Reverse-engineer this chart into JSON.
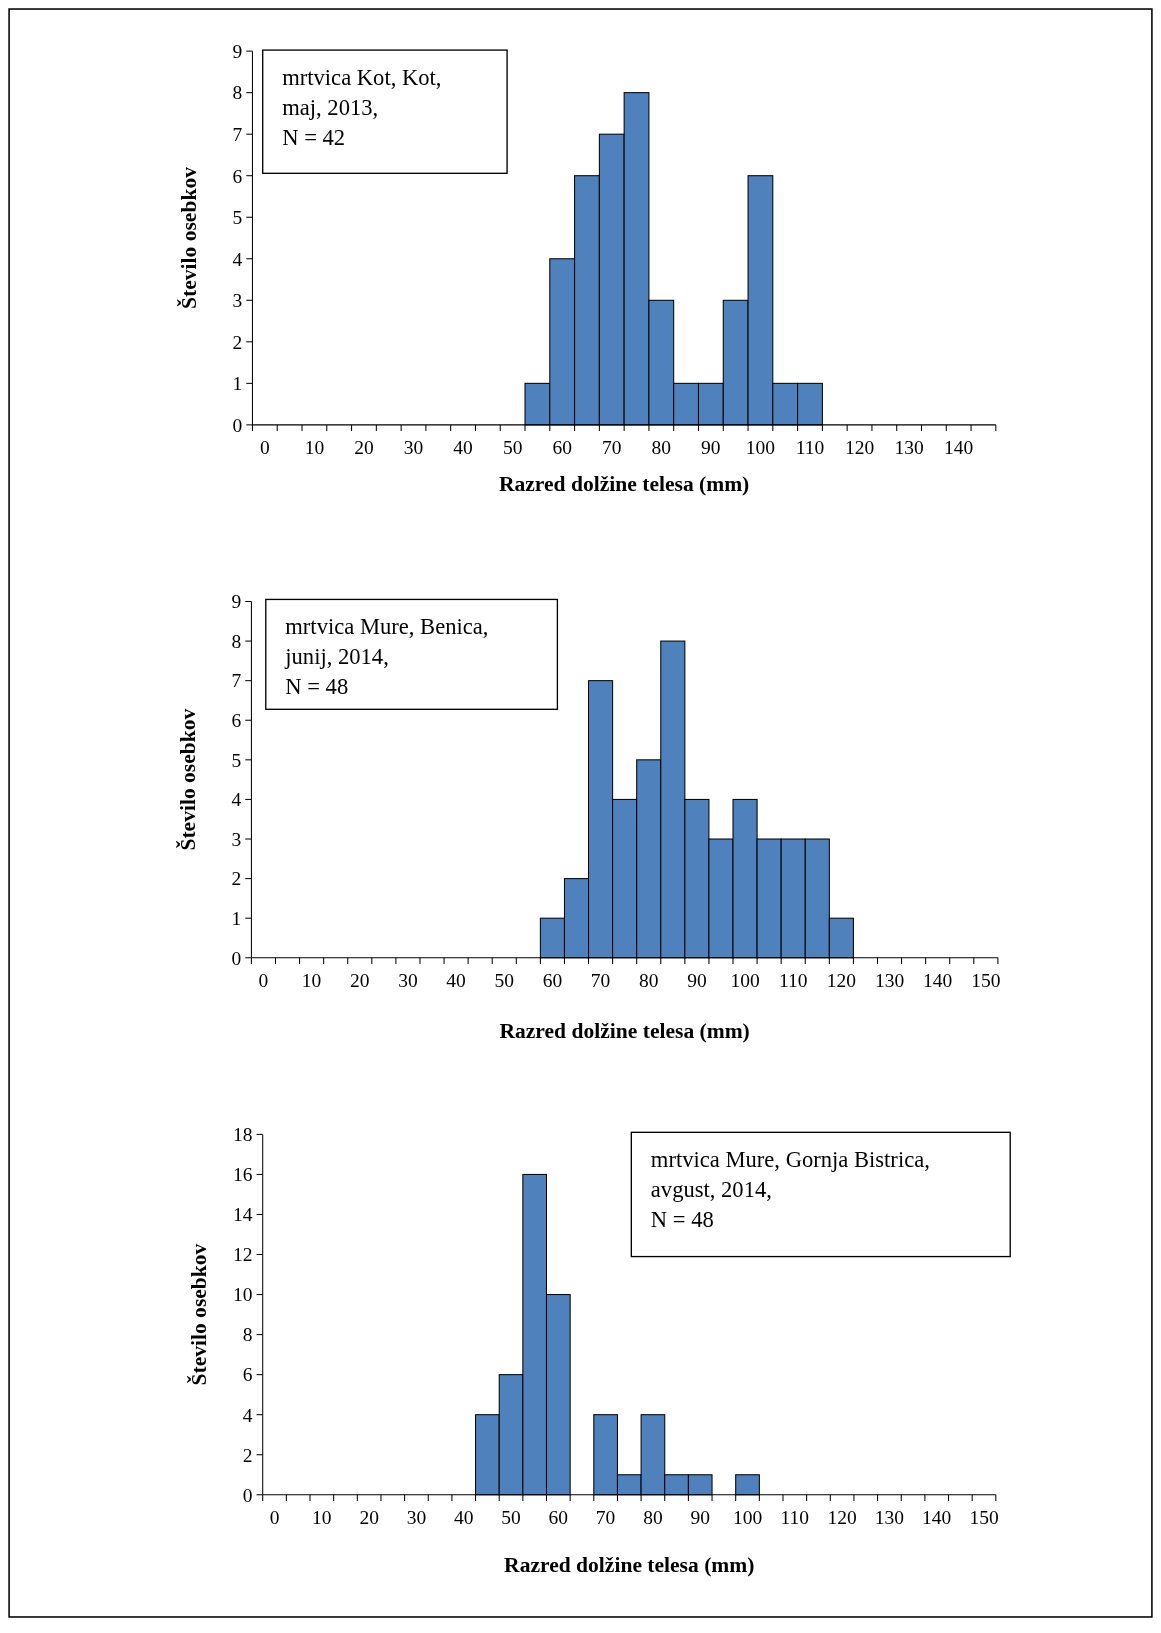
{
  "chart_data": [
    {
      "type": "bar",
      "xlabel": "Razred dolžine telesa (mm)",
      "ylabel": "Število osebkov",
      "color": "#4f81bd",
      "ylim": [
        0,
        9
      ],
      "yticks": [
        0,
        1,
        2,
        3,
        4,
        5,
        6,
        7,
        8,
        9
      ],
      "annotations": [
        "mrtvica Kot, Kot,\nmaj, 2013,\nN = 42"
      ],
      "categories": [
        "0",
        null,
        "10",
        null,
        "20",
        null,
        "30",
        null,
        "40",
        null,
        "50",
        null,
        "60",
        null,
        "70",
        null,
        "80",
        null,
        "90",
        null,
        "100",
        null,
        "110",
        null,
        "120",
        null,
        "130",
        null,
        "140",
        null
      ],
      "values": [
        0,
        0,
        0,
        0,
        0,
        0,
        0,
        0,
        0,
        0,
        0,
        1,
        4,
        6,
        7,
        8,
        3,
        1,
        1,
        3,
        6,
        1,
        1,
        0,
        0,
        0,
        0,
        0,
        0,
        0
      ]
    },
    {
      "type": "bar",
      "xlabel": "Razred dolžine telesa (mm)",
      "ylabel": "Število osebkov",
      "color": "#4f81bd",
      "ylim": [
        0,
        9
      ],
      "yticks": [
        0,
        1,
        2,
        3,
        4,
        5,
        6,
        7,
        8,
        9
      ],
      "annotations": [
        "mrtvica Mure, Benica,\njunij, 2014,\nN = 48"
      ],
      "categories": [
        "0",
        null,
        "10",
        null,
        "20",
        null,
        "30",
        null,
        "40",
        null,
        "50",
        null,
        "60",
        null,
        "70",
        null,
        "80",
        null,
        "90",
        null,
        "100",
        null,
        "110",
        null,
        "120",
        null,
        "130",
        null,
        "140",
        null,
        "150"
      ],
      "values": [
        0,
        0,
        0,
        0,
        0,
        0,
        0,
        0,
        0,
        0,
        0,
        0,
        1,
        2,
        7,
        4,
        5,
        8,
        4,
        3,
        4,
        3,
        3,
        3,
        1,
        0,
        0,
        0,
        0,
        0,
        0
      ]
    },
    {
      "type": "bar",
      "xlabel": "Razred dolžine telesa (mm)",
      "ylabel": "Število osebkov",
      "color": "#4f81bd",
      "ylim": [
        0,
        18
      ],
      "yticks": [
        0,
        2,
        4,
        6,
        8,
        10,
        12,
        14,
        16,
        18
      ],
      "annotations": [
        "mrtvica Mure, Gornja Bistrica,\navgust, 2014,\nN = 48"
      ],
      "categories": [
        "0",
        null,
        "10",
        null,
        "20",
        null,
        "30",
        null,
        "40",
        null,
        "50",
        null,
        "60",
        null,
        "70",
        null,
        "80",
        null,
        "90",
        null,
        "100",
        null,
        "110",
        null,
        "120",
        null,
        "130",
        null,
        "140",
        null,
        "150"
      ],
      "values": [
        0,
        0,
        0,
        0,
        0,
        0,
        0,
        0,
        0,
        4,
        6,
        16,
        10,
        0,
        4,
        1,
        4,
        1,
        1,
        0,
        1,
        0,
        0,
        0,
        0,
        0,
        0,
        0,
        0,
        0,
        0
      ]
    }
  ]
}
